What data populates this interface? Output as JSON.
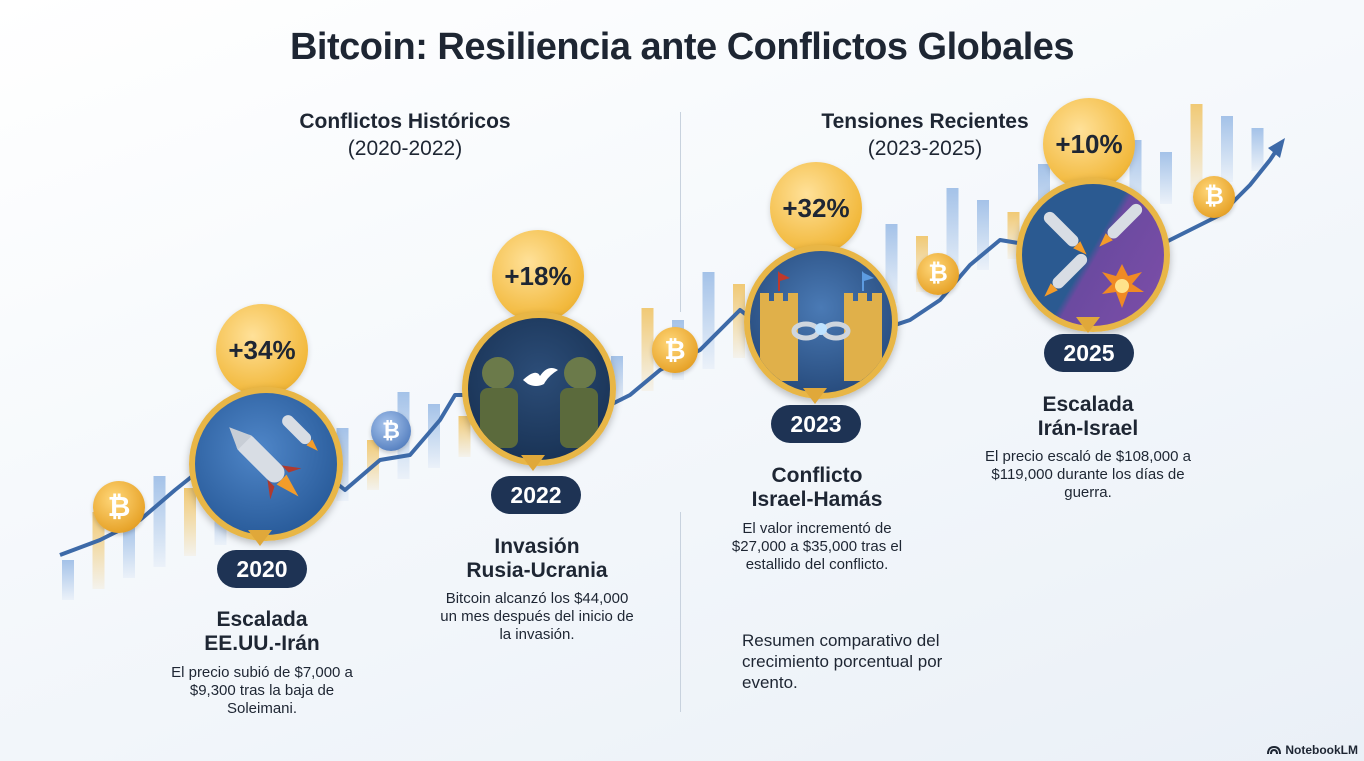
{
  "title": "Bitcoin: Resiliencia ante Conflictos Globales",
  "sections": [
    {
      "heading": "Conflictos Históricos",
      "range": "(2020-2022)"
    },
    {
      "heading": "Tensiones Recientes",
      "range": "(2023-2025)"
    }
  ],
  "events": [
    {
      "percent": "+34%",
      "year": "2020",
      "title_line1": "Escalada",
      "title_line2": "EE.UU.-Irán",
      "description": "El precio subió de $7,000 a $9,300 tras la baja de Soleimani.",
      "icon": "rocket-icon"
    },
    {
      "percent": "+18%",
      "year": "2022",
      "title_line1": "Invasión",
      "title_line2": "Rusia-Ucrania",
      "description": "Bitcoin alcanzó los $44,000 un mes después del inicio de la invasión.",
      "icon": "soldiers-dove-icon"
    },
    {
      "percent": "+32%",
      "year": "2023",
      "title_line1": "Conflicto",
      "title_line2": "Israel-Hamás",
      "description": "El valor incrementó de $27,000 a $35,000 tras el estallido del conflicto.",
      "icon": "broken-chain-castles-icon"
    },
    {
      "percent": "+10%",
      "year": "2025",
      "title_line1": "Escalada",
      "title_line2": "Irán-Israel",
      "description": "El precio escaló de $108,000 a $119,000 durante los días de guerra.",
      "icon": "missiles-explosion-icon"
    }
  ],
  "summary": "Resumen comparativo del crecimiento porcentual por evento.",
  "brand": "NotebookLM",
  "coin_symbol": "₿",
  "colors": {
    "navy": "#1e3354",
    "gold": "#f2b93d",
    "line": "#3d6aa8"
  }
}
